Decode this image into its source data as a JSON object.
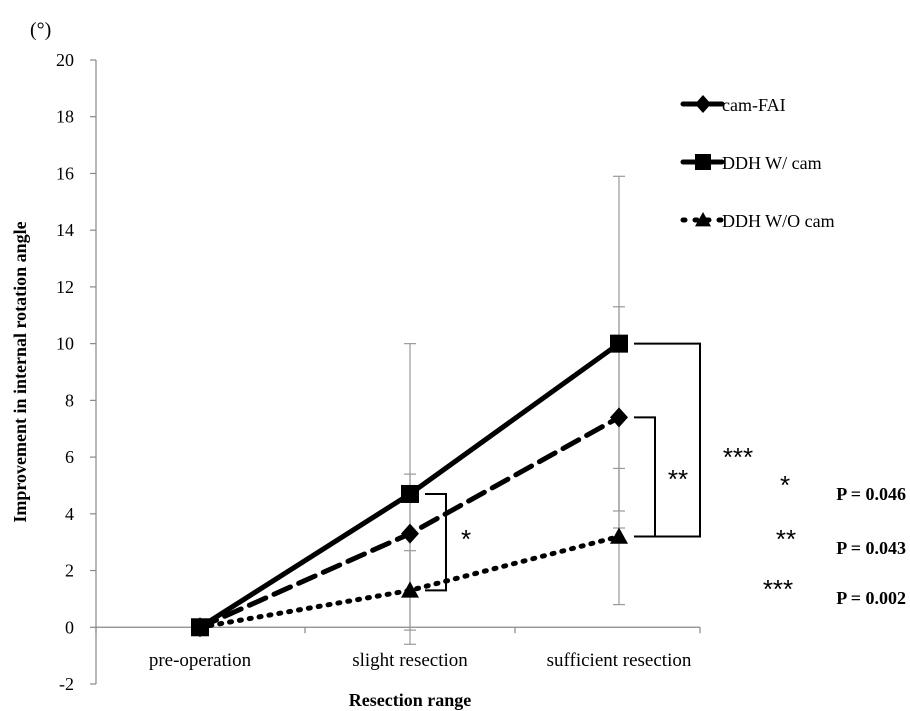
{
  "chart_data": {
    "type": "line",
    "unit_label": "(°)",
    "ylabel": "Improvement in internal rotation angle",
    "xlabel": "Resection range",
    "ylim": [
      -2,
      20
    ],
    "yticks": [
      -2,
      0,
      2,
      4,
      6,
      8,
      10,
      12,
      14,
      16,
      18,
      20
    ],
    "categories": [
      "pre-operation",
      "slight resection",
      "sufficient resection"
    ],
    "grid": false,
    "legend_position": "top-right",
    "series": [
      {
        "name": "cam-FAI",
        "line_style": "dashed",
        "marker": "diamond",
        "values": [
          0,
          3.3,
          7.4
        ],
        "error": [
          0,
          2.1,
          3.9
        ]
      },
      {
        "name": "DDH W/ cam",
        "line_style": "solid",
        "marker": "square",
        "values": [
          0,
          4.7,
          10.0
        ],
        "error": [
          0,
          5.3,
          5.9
        ]
      },
      {
        "name": "DDH W/O cam",
        "line_style": "dotted",
        "marker": "triangle",
        "values": [
          0,
          1.3,
          3.2
        ],
        "error": [
          0,
          1.4,
          2.4
        ]
      }
    ],
    "significance_markers": [
      {
        "label": "*",
        "between": [
          "DDH W/ cam",
          "DDH W/O cam"
        ],
        "category": "slight resection"
      },
      {
        "label": "**",
        "between": [
          "cam-FAI",
          "DDH W/O cam"
        ],
        "category": "sufficient resection"
      },
      {
        "label": "***",
        "between": [
          "DDH W/ cam",
          "DDH W/O cam"
        ],
        "category": "sufficient resection"
      }
    ],
    "p_values": [
      {
        "stars": "*",
        "text": "P = 0.046"
      },
      {
        "stars": "**",
        "text": "P = 0.043"
      },
      {
        "stars": "***",
        "text": "P = 0.002"
      }
    ]
  }
}
